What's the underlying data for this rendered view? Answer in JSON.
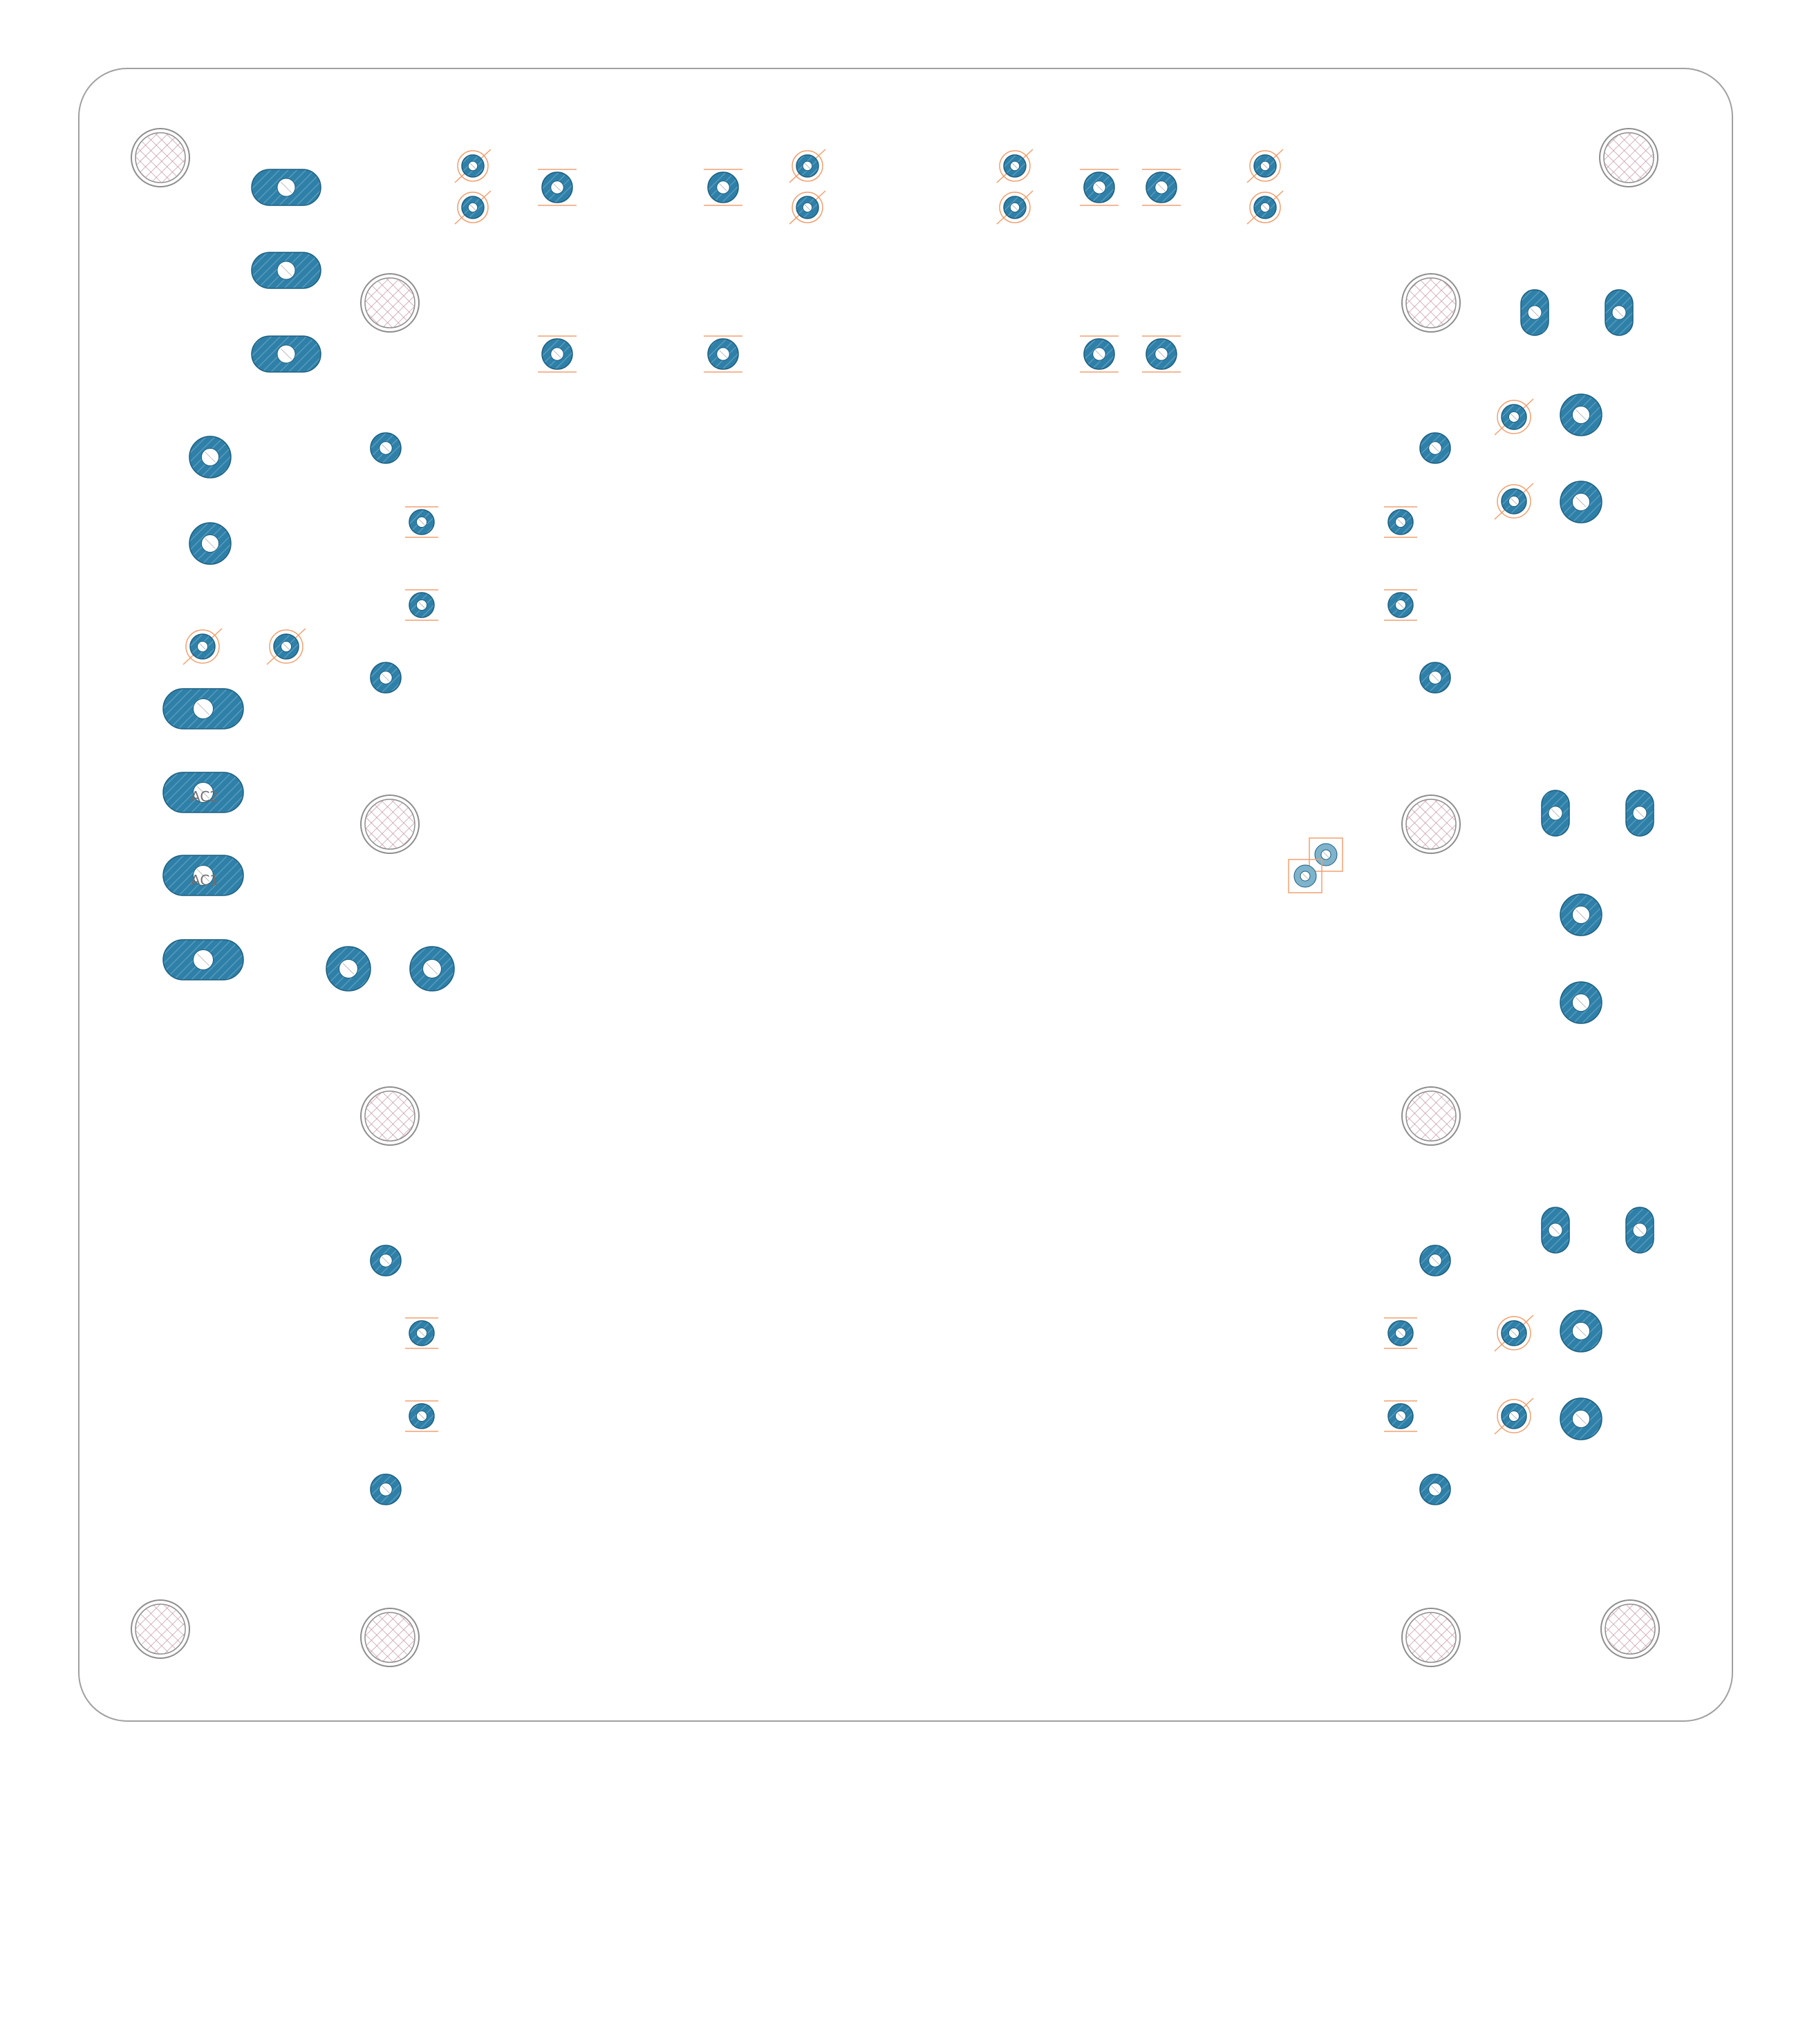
{
  "colors": {
    "copper": "#2f80a8",
    "copper_stroke": "#1c5f80",
    "hatch": "#7ab3cf",
    "hole": "#ffffff",
    "outline": "#9a9a9a",
    "mount": "#8d8d8d",
    "mount_hatch": "#b07a8a",
    "silk": "#f0a070",
    "label": "#777777"
  },
  "labels": {
    "ac2": "AC2",
    "ac1": "AC1"
  }
}
